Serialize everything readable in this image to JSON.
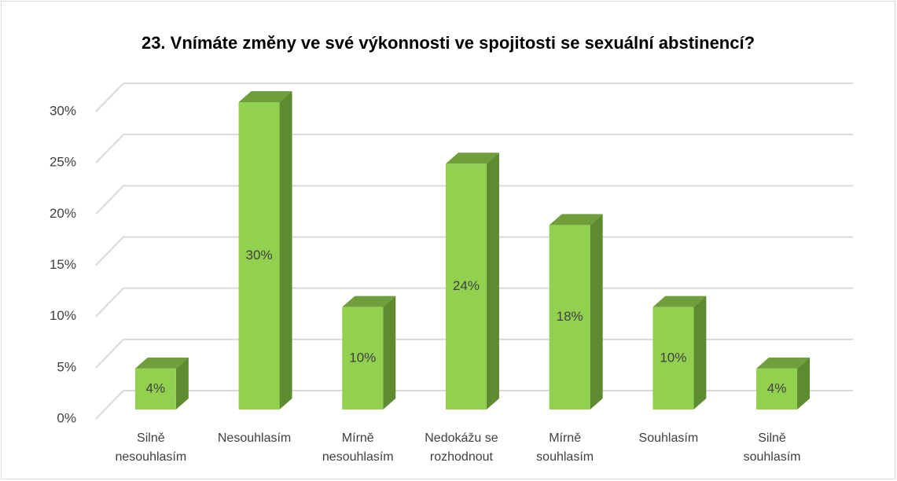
{
  "chart_data": {
    "type": "bar3d",
    "title": "23. Vnímáte změny ve své výkonnosti ve spojitosti se sexuální abstinencí?",
    "categories": [
      "Silně nesouhlasím",
      "Nesouhlasím",
      "Mírně nesouhlasím",
      "Nedokážu se rozhodnout",
      "Mírně souhlasím",
      "Souhlasím",
      "Silně souhlasím"
    ],
    "values": [
      4,
      30,
      10,
      24,
      18,
      10,
      4
    ],
    "value_labels": [
      "4%",
      "30%",
      "10%",
      "24%",
      "18%",
      "10%",
      "4%"
    ],
    "color": "#92d050",
    "ylim": [
      0,
      30
    ],
    "yticks": [
      {
        "value": 0,
        "label": "0%"
      },
      {
        "value": 5,
        "label": "5%"
      },
      {
        "value": 10,
        "label": "10%"
      },
      {
        "value": 15,
        "label": "15%"
      },
      {
        "value": 20,
        "label": "20%"
      },
      {
        "value": 25,
        "label": "25%"
      },
      {
        "value": 30,
        "label": "30%"
      }
    ],
    "grid": true
  }
}
